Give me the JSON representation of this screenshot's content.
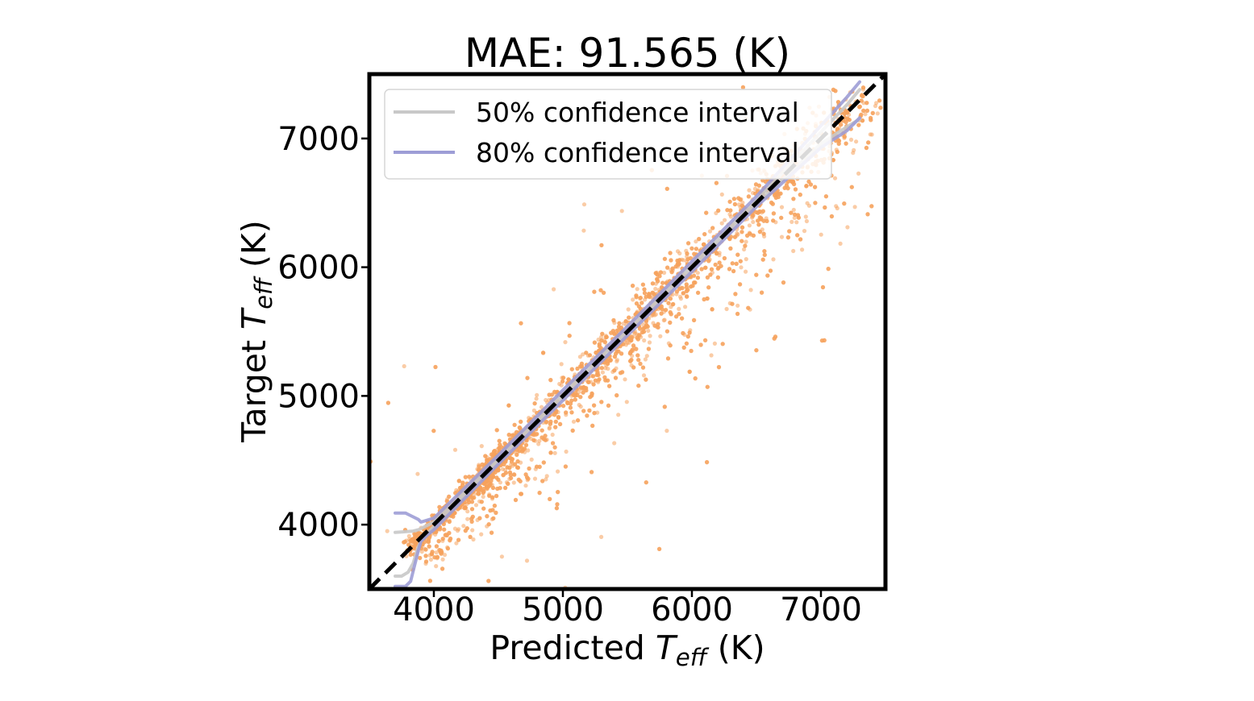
{
  "chart_data": {
    "type": "scatter",
    "title": "MAE: 91.565 (K)",
    "xlabel": {
      "prefix": "Predicted ",
      "symbol": "T",
      "subscript": "eff",
      "suffix": " (K)"
    },
    "ylabel": {
      "prefix": "Target ",
      "symbol": "T",
      "subscript": "eff",
      "suffix": " (K)"
    },
    "xlim": [
      3500,
      7500
    ],
    "ylim": [
      3500,
      7500
    ],
    "xticks": [
      4000,
      5000,
      6000,
      7000
    ],
    "yticks": [
      4000,
      5000,
      6000,
      7000
    ],
    "point_color": "#f5a25d",
    "identity_line": {
      "style": "dashed",
      "color": "#000000",
      "from": [
        3500,
        3500
      ],
      "to": [
        7500,
        7500
      ]
    },
    "legend": {
      "position": "upper-left",
      "entries": [
        {
          "label": "50% confidence interval",
          "color": "#c8c8c8"
        },
        {
          "label": "80% confidence interval",
          "color": "#9d9dd6"
        }
      ]
    },
    "series": [
      {
        "name": "50% confidence interval (lower)",
        "color": "#c8c8c8",
        "x": [
          3700,
          3750,
          3800,
          3840,
          3870,
          3900,
          4000,
          4500,
          5000,
          5500,
          6000,
          6500,
          7000,
          7200,
          7300
        ],
        "y": [
          3600,
          3600,
          3630,
          3700,
          3800,
          3880,
          3985,
          4490,
          4985,
          5490,
          5985,
          6490,
          6960,
          7090,
          7150
        ]
      },
      {
        "name": "50% confidence interval (upper)",
        "color": "#c8c8c8",
        "x": [
          3700,
          3780,
          3840,
          3880,
          3900,
          4000,
          4500,
          5000,
          5500,
          6000,
          6500,
          7000,
          7200,
          7300
        ],
        "y": [
          3940,
          3945,
          3950,
          3960,
          3970,
          4020,
          4515,
          5020,
          5515,
          6020,
          6520,
          7050,
          7260,
          7380
        ]
      },
      {
        "name": "80% confidence interval (lower)",
        "color": "#9d9dd6",
        "x": [
          3700,
          3780,
          3820,
          3850,
          3880,
          3900,
          3950,
          4000,
          4500,
          5000,
          5500,
          6000,
          6500,
          7000,
          7200,
          7300
        ],
        "y": [
          3520,
          3520,
          3560,
          3680,
          3800,
          3870,
          3920,
          3960,
          4470,
          4965,
          5470,
          5965,
          6470,
          6930,
          7060,
          7160
        ]
      },
      {
        "name": "80% confidence interval (upper)",
        "color": "#9d9dd6",
        "x": [
          3700,
          3780,
          3840,
          3880,
          3900,
          4000,
          4500,
          5000,
          5500,
          6000,
          6500,
          7000,
          7200,
          7300
        ],
        "y": [
          4090,
          4090,
          4060,
          4040,
          4020,
          4050,
          4540,
          5045,
          5540,
          6045,
          6550,
          7100,
          7320,
          7440
        ]
      }
    ]
  }
}
